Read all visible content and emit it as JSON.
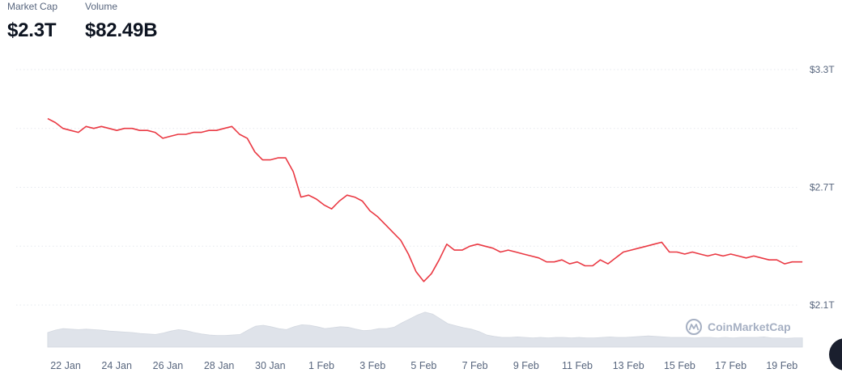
{
  "stats": {
    "market_cap_label": "Market Cap",
    "market_cap_value": "$2.3T",
    "volume_label": "Volume",
    "volume_value": "$82.49B"
  },
  "watermark": {
    "text": "CoinMarketCap",
    "icon": "coinmarketcap-logo-icon"
  },
  "colors": {
    "line": "#ea3943",
    "volume": "#dfe3ea",
    "grid": "#e5e8ee",
    "text": "#58667e"
  },
  "chart_data": {
    "type": "line",
    "title": "",
    "xlabel": "",
    "ylabel": "",
    "ylim": [
      2.1,
      3.3
    ],
    "yticks": [
      "$2.1T",
      "$2.7T",
      "$3.3T"
    ],
    "ytick_values": [
      2.1,
      2.7,
      3.3
    ],
    "xticks": [
      "22 Jan",
      "24 Jan",
      "26 Jan",
      "28 Jan",
      "30 Jan",
      "1 Feb",
      "3 Feb",
      "5 Feb",
      "7 Feb",
      "9 Feb",
      "11 Feb",
      "13 Feb",
      "15 Feb",
      "17 Feb",
      "19 Feb"
    ],
    "x_start_day": 0.3,
    "x_end_day": 29.8,
    "series": [
      {
        "x": [
          0.3,
          0.6,
          0.9,
          1.2,
          1.5,
          1.8,
          2.1,
          2.4,
          2.7,
          3.0,
          3.3,
          3.6,
          3.9,
          4.2,
          4.5,
          4.8,
          5.1,
          5.4,
          5.7,
          6.0,
          6.3,
          6.6,
          6.9,
          7.2,
          7.5,
          7.8,
          8.1,
          8.4,
          8.7,
          9.0,
          9.3,
          9.6,
          9.9,
          10.2,
          10.5,
          10.8,
          11.1,
          11.4,
          11.7,
          12.0,
          12.3,
          12.6,
          12.9,
          13.2,
          13.5,
          13.8,
          14.1,
          14.4,
          14.7,
          15.0,
          15.3,
          15.6,
          15.9,
          16.2,
          16.5,
          16.8,
          17.1,
          17.4,
          17.7,
          18.0,
          18.3,
          18.6,
          18.9,
          19.2,
          19.5,
          19.8,
          20.1,
          20.4,
          20.7,
          21.0,
          21.3,
          21.6,
          21.9,
          22.2,
          22.5,
          22.8,
          23.1,
          23.4,
          23.7,
          24.0,
          24.3,
          24.6,
          24.9,
          25.2,
          25.5,
          25.8,
          26.1,
          26.4,
          26.7,
          27.0,
          27.3,
          27.6,
          27.9,
          28.2,
          28.5,
          28.8,
          29.1,
          29.4,
          29.8
        ],
        "values": [
          3.05,
          3.03,
          3.0,
          2.99,
          2.98,
          3.01,
          3.0,
          3.01,
          3.0,
          2.99,
          3.0,
          3.0,
          2.99,
          2.99,
          2.98,
          2.95,
          2.96,
          2.97,
          2.97,
          2.98,
          2.98,
          2.99,
          2.99,
          3.0,
          3.01,
          2.97,
          2.95,
          2.88,
          2.84,
          2.84,
          2.85,
          2.85,
          2.78,
          2.65,
          2.66,
          2.64,
          2.61,
          2.59,
          2.63,
          2.66,
          2.65,
          2.63,
          2.58,
          2.55,
          2.51,
          2.47,
          2.43,
          2.36,
          2.27,
          2.22,
          2.26,
          2.33,
          2.41,
          2.38,
          2.38,
          2.4,
          2.41,
          2.4,
          2.39,
          2.37,
          2.38,
          2.37,
          2.36,
          2.35,
          2.34,
          2.32,
          2.32,
          2.33,
          2.31,
          2.32,
          2.3,
          2.3,
          2.33,
          2.31,
          2.34,
          2.37,
          2.38,
          2.39,
          2.4,
          2.41,
          2.42,
          2.37,
          2.37,
          2.36,
          2.37,
          2.36,
          2.35,
          2.36,
          2.35,
          2.36,
          2.35,
          2.34,
          2.35,
          2.34,
          2.33,
          2.33,
          2.31,
          2.32,
          2.32
        ]
      }
    ],
    "volume": [
      0.3,
      0.35,
      0.38,
      0.37,
      0.36,
      0.37,
      0.36,
      0.35,
      0.33,
      0.32,
      0.31,
      0.3,
      0.28,
      0.27,
      0.26,
      0.29,
      0.33,
      0.36,
      0.34,
      0.3,
      0.27,
      0.25,
      0.24,
      0.24,
      0.25,
      0.26,
      0.35,
      0.43,
      0.45,
      0.42,
      0.38,
      0.36,
      0.42,
      0.46,
      0.45,
      0.42,
      0.38,
      0.4,
      0.42,
      0.41,
      0.37,
      0.34,
      0.35,
      0.38,
      0.38,
      0.41,
      0.5,
      0.58,
      0.66,
      0.72,
      0.68,
      0.58,
      0.48,
      0.44,
      0.4,
      0.37,
      0.32,
      0.25,
      0.22,
      0.2,
      0.2,
      0.21,
      0.2,
      0.19,
      0.2,
      0.19,
      0.2,
      0.2,
      0.19,
      0.2,
      0.19,
      0.19,
      0.2,
      0.21,
      0.2,
      0.2,
      0.21,
      0.22,
      0.23,
      0.22,
      0.21,
      0.2,
      0.2,
      0.2,
      0.19,
      0.2,
      0.2,
      0.19,
      0.2,
      0.19,
      0.2,
      0.2,
      0.2,
      0.21,
      0.19,
      0.19,
      0.18,
      0.19,
      0.19
    ]
  }
}
